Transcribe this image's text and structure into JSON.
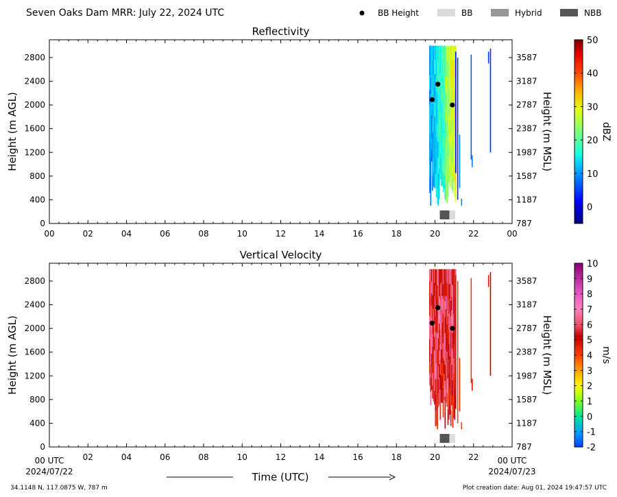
{
  "header": {
    "title": "Seven Oaks Dam MRR:  July 22, 2024 UTC",
    "legend": [
      {
        "label": "BB Height",
        "kind": "dot",
        "color": "#000000"
      },
      {
        "label": "BB",
        "kind": "swatch",
        "color": "#dcdcdc"
      },
      {
        "label": "Hybrid",
        "kind": "swatch",
        "color": "#969696"
      },
      {
        "label": "NBB",
        "kind": "swatch",
        "color": "#555555"
      }
    ]
  },
  "footer": {
    "location": "34.1148 N, 117.0875 W, 787 m",
    "created": "Plot creation date: Aug 01, 2024 19:47:57 UTC",
    "time_label": "Time (UTC)",
    "start_label": "00 UTC",
    "start_date": "2024/07/22",
    "end_label": "00 UTC",
    "end_date": "2024/07/23"
  },
  "chart_data": [
    {
      "type": "heatmap",
      "title": "Reflectivity",
      "xlabel": "",
      "ylabel": "Height (m AGL)",
      "ylabel_right": "Height (m MSL)",
      "colorbar_label": "dBZ",
      "x_ticks": [
        "00",
        "02",
        "04",
        "06",
        "08",
        "10",
        "12",
        "14",
        "16",
        "18",
        "20",
        "22",
        "00"
      ],
      "xlim": [
        0,
        24
      ],
      "ylim": [
        0,
        3100
      ],
      "y_ticks": [
        0,
        400,
        800,
        1200,
        1600,
        2000,
        2400,
        2800
      ],
      "y_ticks_right": [
        787,
        1187,
        1587,
        1987,
        2387,
        2787,
        3187,
        3587
      ],
      "colorbar_ticks": [
        0,
        10,
        20,
        30,
        40,
        50
      ],
      "colorbar_range": [
        -5,
        50
      ],
      "bb_height_points": [
        {
          "x": 19.85,
          "y": 2090
        },
        {
          "x": 20.15,
          "y": 2350
        },
        {
          "x": 20.9,
          "y": 2000
        }
      ],
      "bb_class_strip": [
        {
          "start": 20.25,
          "end": 20.75,
          "class": "NBB"
        },
        {
          "start": 20.75,
          "end": 21.05,
          "class": "BB"
        }
      ]
    },
    {
      "type": "heatmap",
      "title": "Vertical Velocity",
      "xlabel": "",
      "ylabel": "Height (m AGL)",
      "ylabel_right": "Height (m MSL)",
      "colorbar_label": "m/s",
      "x_ticks": [
        "00",
        "02",
        "04",
        "06",
        "08",
        "10",
        "12",
        "14",
        "16",
        "18",
        "20",
        "22",
        "00"
      ],
      "xlim": [
        0,
        24
      ],
      "ylim": [
        0,
        3100
      ],
      "y_ticks": [
        0,
        400,
        800,
        1200,
        1600,
        2000,
        2400,
        2800
      ],
      "y_ticks_right": [
        787,
        1187,
        1587,
        1987,
        2387,
        2787,
        3187,
        3587
      ],
      "colorbar_ticks": [
        -2,
        -1,
        0,
        1,
        2,
        3,
        4,
        5,
        6,
        7,
        8,
        9,
        10
      ],
      "colorbar_range": [
        -2,
        10
      ],
      "bb_height_points": [
        {
          "x": 19.85,
          "y": 2090
        },
        {
          "x": 20.15,
          "y": 2350
        },
        {
          "x": 20.9,
          "y": 2000
        }
      ],
      "bb_class_strip": [
        {
          "start": 20.25,
          "end": 20.75,
          "class": "NBB"
        },
        {
          "start": 20.75,
          "end": 21.05,
          "class": "BB"
        }
      ]
    }
  ]
}
